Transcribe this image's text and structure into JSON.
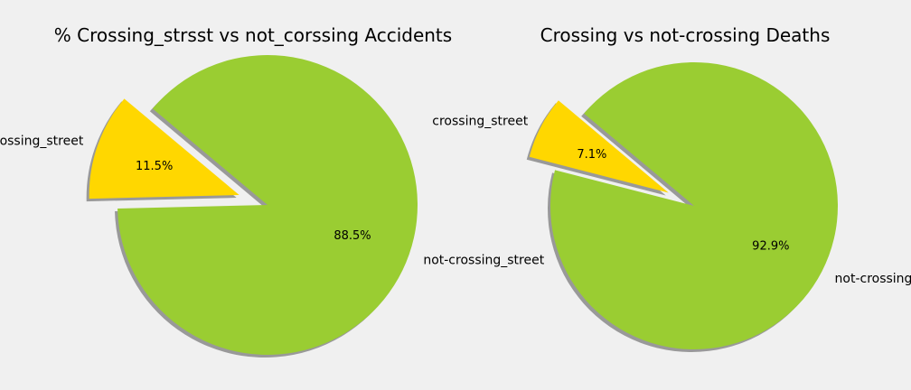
{
  "chart_data": [
    {
      "type": "pie",
      "title": "% Crossing_strsst vs not_corssing Accidents",
      "slices": [
        {
          "label": "crossing_street",
          "value": 11.5,
          "pct_label": "11.5%",
          "color": "#ffd700",
          "exploded": true
        },
        {
          "label": "not-crossing_street",
          "value": 88.5,
          "pct_label": "88.5%",
          "color": "#9acd32",
          "exploded": false
        }
      ],
      "shadow": true,
      "legend": false
    },
    {
      "type": "pie",
      "title": "Crossing vs not-crossing Deaths",
      "slices": [
        {
          "label": "crossing_street",
          "value": 7.1,
          "pct_label": "7.1%",
          "color": "#ffd700",
          "exploded": true
        },
        {
          "label": "not-crossing_street",
          "value": 92.9,
          "pct_label": "92.9%",
          "color": "#9acd32",
          "exploded": false
        }
      ],
      "shadow": true,
      "legend": false
    }
  ]
}
